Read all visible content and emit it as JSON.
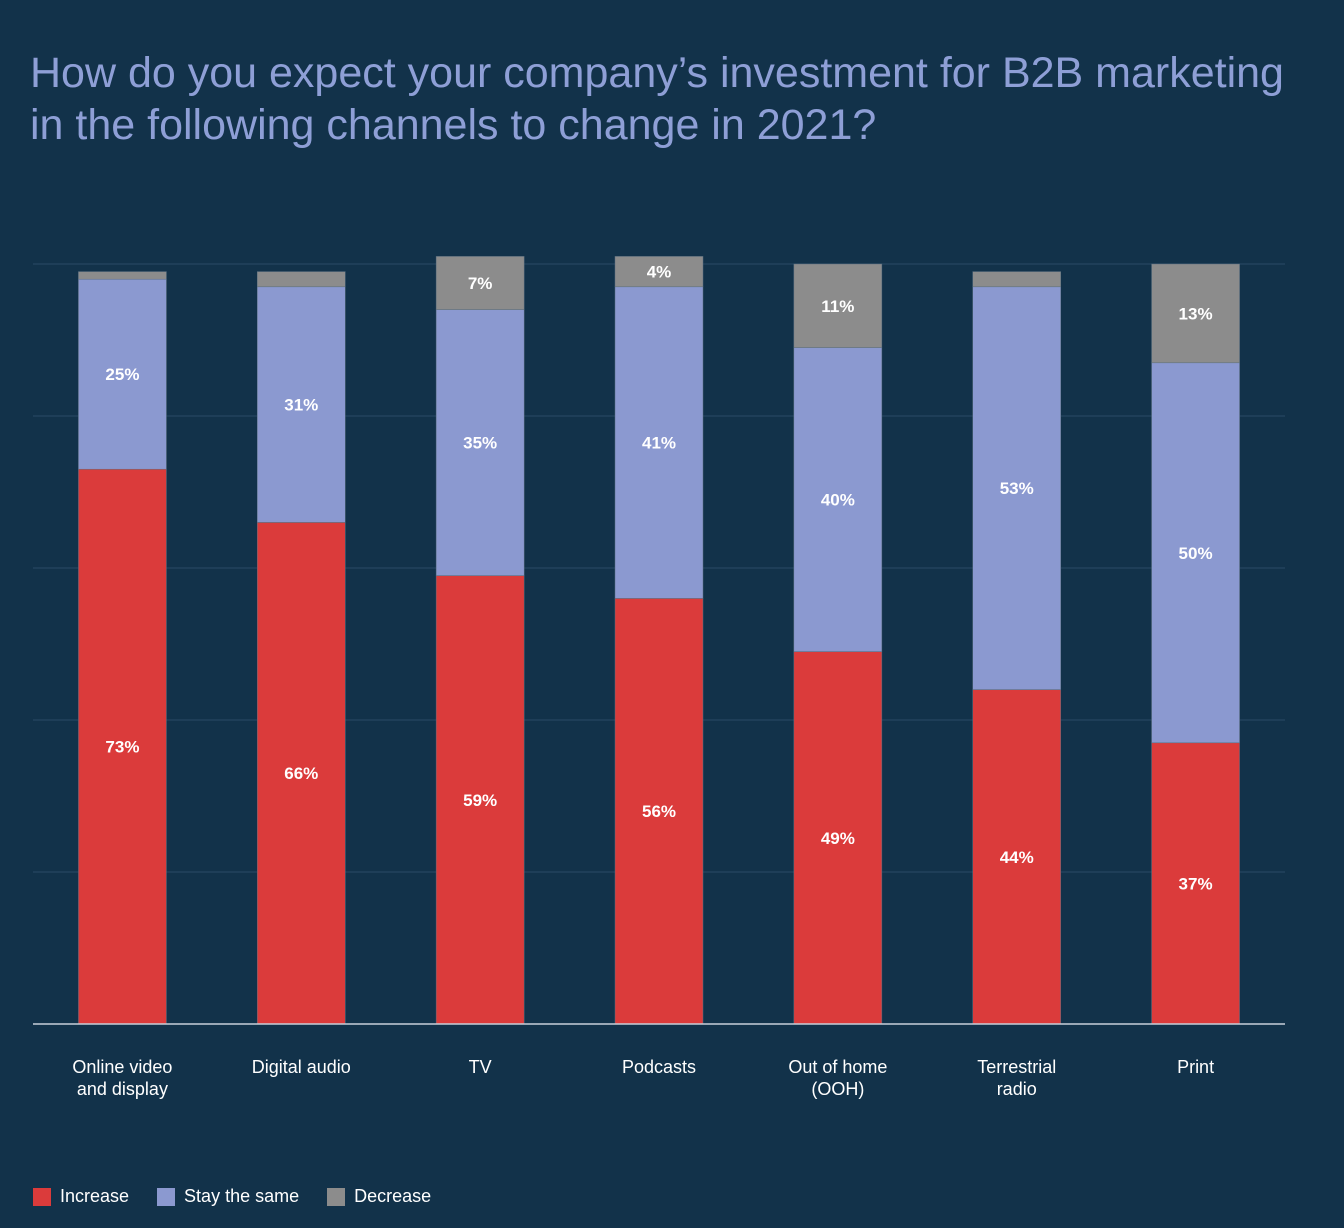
{
  "chart_data": {
    "type": "bar",
    "stacked": true,
    "title": "How do you expect your company’s investment for B2B marketing in the following channels to change in 2021?",
    "categories": [
      [
        "Online video",
        "and display"
      ],
      [
        "Digital audio"
      ],
      [
        "TV"
      ],
      [
        "Podcasts"
      ],
      [
        "Out of home",
        "(OOH)"
      ],
      [
        "Terrestrial",
        "radio"
      ],
      [
        "Print"
      ]
    ],
    "series": [
      {
        "name": "Increase",
        "color": "#db3b3b",
        "values": [
          73,
          66,
          59,
          56,
          49,
          44,
          37
        ],
        "labels": [
          "73%",
          "66%",
          "59%",
          "56%",
          "49%",
          "44%",
          "37%"
        ]
      },
      {
        "name": "Stay the same",
        "color": "#8b99d0",
        "values": [
          25,
          31,
          35,
          41,
          40,
          53,
          50
        ],
        "labels": [
          "25%",
          "31%",
          "35%",
          "41%",
          "40%",
          "53%",
          "50%"
        ]
      },
      {
        "name": "Decrease",
        "color": "#8c8c8c",
        "values": [
          1,
          2,
          7,
          4,
          11,
          2,
          13
        ],
        "labels": [
          "",
          "",
          "7%",
          "4%",
          "11%",
          "",
          "13%"
        ]
      }
    ],
    "ylim": [
      0,
      100
    ],
    "grid": true,
    "legend_position": "bottom-left"
  }
}
